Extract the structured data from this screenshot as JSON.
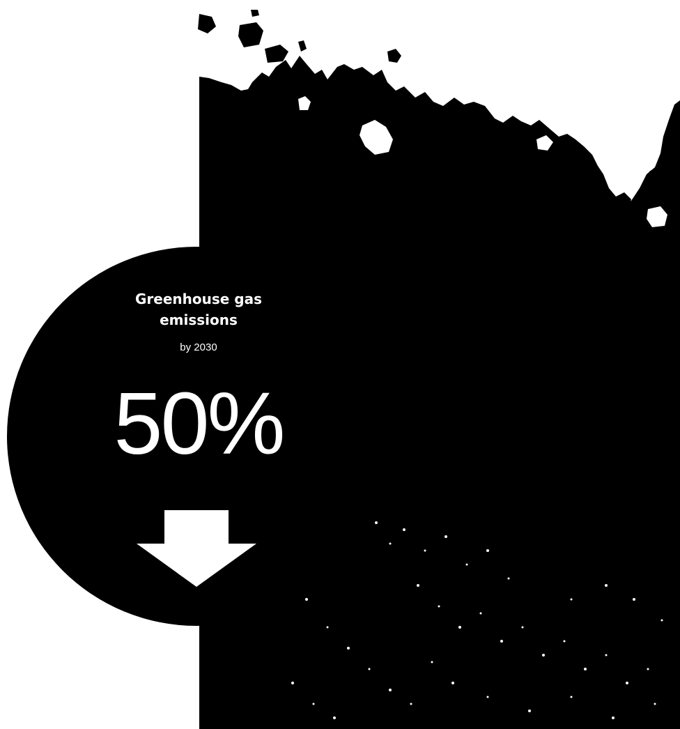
{
  "stat": {
    "title": "Greenhouse gas emissions",
    "subtitle": "by 2030",
    "value": "50%",
    "direction_icon": "arrow-down-icon"
  },
  "colors": {
    "background": "#ffffff",
    "photo_dark": "#000000",
    "text": "#ffffff"
  }
}
